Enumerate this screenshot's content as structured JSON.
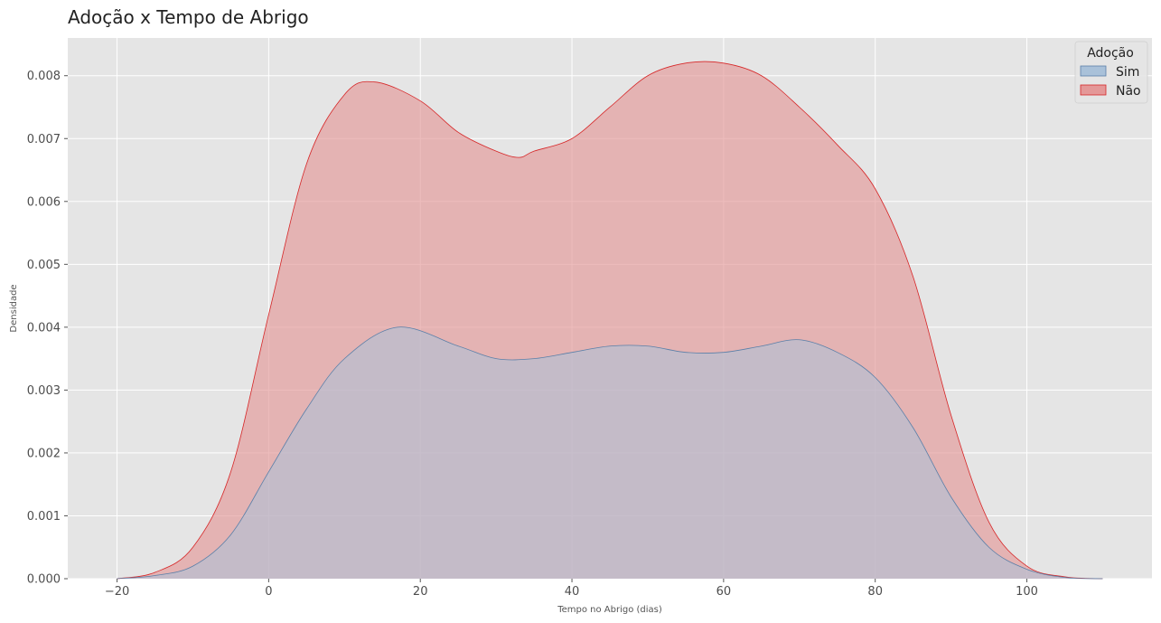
{
  "chart_data": {
    "type": "area",
    "title": "Adoção x Tempo de Abrigo",
    "xlabel": "Tempo no Abrigo (dias)",
    "ylabel": "Densidade",
    "xlim": [
      -26.5,
      116.5
    ],
    "ylim": [
      0,
      0.0086
    ],
    "grid": true,
    "legend": {
      "title": "Adoção",
      "placement": "top-right"
    },
    "xticks": [
      -20,
      0,
      20,
      40,
      60,
      80,
      100
    ],
    "xtick_labels": [
      "−20",
      "0",
      "20",
      "40",
      "60",
      "80",
      "100"
    ],
    "yticks": [
      0,
      0.001,
      0.002,
      0.003,
      0.004,
      0.005,
      0.006,
      0.007,
      0.008
    ],
    "ytick_labels": [
      "0.000",
      "0.001",
      "0.002",
      "0.003",
      "0.004",
      "0.005",
      "0.006",
      "0.007",
      "0.008"
    ],
    "series": [
      {
        "name": "Não",
        "line_color": "#d62728",
        "fill_color": "#e49898",
        "x": [
          -20,
          -15,
          -10,
          -5,
          0,
          5,
          10,
          14,
          20,
          25,
          30,
          33,
          35,
          40,
          45,
          50,
          55,
          60,
          65,
          70,
          75,
          80,
          85,
          90,
          95,
          100,
          105,
          110
        ],
        "y": [
          0,
          0.0001,
          0.0005,
          0.0017,
          0.0042,
          0.0066,
          0.0077,
          0.0079,
          0.0076,
          0.0071,
          0.0068,
          0.0067,
          0.0068,
          0.007,
          0.0075,
          0.008,
          0.0082,
          0.0082,
          0.008,
          0.0075,
          0.0069,
          0.0062,
          0.0048,
          0.0026,
          0.0009,
          0.0002,
          3e-05,
          0
        ]
      },
      {
        "name": "Sim",
        "line_color": "#5a7fa8",
        "fill_color": "#a9c1d9",
        "x": [
          -20,
          -15,
          -10,
          -5,
          0,
          5,
          10,
          17,
          25,
          30,
          35,
          40,
          45,
          50,
          55,
          60,
          65,
          70,
          75,
          80,
          85,
          90,
          95,
          100,
          105,
          110
        ],
        "y": [
          0,
          5e-05,
          0.0002,
          0.0007,
          0.0017,
          0.0027,
          0.0035,
          0.004,
          0.0037,
          0.0035,
          0.0035,
          0.0036,
          0.0037,
          0.0037,
          0.0036,
          0.0036,
          0.0037,
          0.0038,
          0.0036,
          0.0032,
          0.0024,
          0.0013,
          0.0005,
          0.00015,
          2e-05,
          0
        ]
      }
    ]
  },
  "colors": {
    "plot_background": "#e5e5e5",
    "grid": "#ffffff"
  }
}
